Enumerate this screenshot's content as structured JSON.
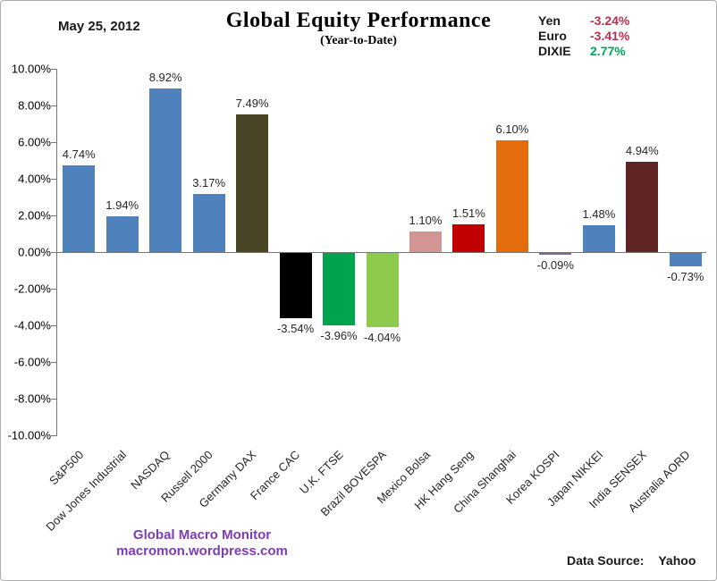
{
  "header": {
    "date": "May 25, 2012",
    "title": "Global Equity Performance",
    "subtitle": "(Year-to-Date)"
  },
  "currency_panel": {
    "negative_color": "#c12d4d",
    "positive_color": "#00a35f",
    "rows": [
      {
        "label": "Yen",
        "value": "-3.24%",
        "direction": "negative"
      },
      {
        "label": "Euro",
        "value": "-3.41%",
        "direction": "negative"
      },
      {
        "label": "DIXIE",
        "value": "2.77%",
        "direction": "positive"
      }
    ]
  },
  "chart_data": {
    "type": "bar",
    "title": "Global Equity Performance",
    "subtitle": "(Year-to-Date)",
    "categories": [
      "S&P500",
      "Dow Jones Industrial",
      "NASDAQ",
      "Russell 2000",
      "Germany DAX",
      "France CAC",
      "U.K. FTSE",
      "Brazil BOVESPA",
      "Mexico Bolsa",
      "HK Hang Seng",
      "China Shanghai",
      "Korea KOSPI",
      "Japan NIKKEI",
      "India SENSEX",
      "Australia AORD"
    ],
    "values": [
      4.74,
      1.94,
      8.92,
      3.17,
      7.49,
      -3.54,
      -3.96,
      -4.04,
      1.1,
      1.51,
      6.1,
      -0.09,
      1.48,
      4.94,
      -0.73
    ],
    "value_labels": [
      "4.74%",
      "1.94%",
      "8.92%",
      "3.17%",
      "7.49%",
      "-3.54%",
      "-3.96%",
      "-4.04%",
      "1.10%",
      "1.51%",
      "6.10%",
      "-0.09%",
      "1.48%",
      "4.94%",
      "-0.73%"
    ],
    "bar_colors": [
      "#4f81bd",
      "#4f81bd",
      "#4f81bd",
      "#4f81bd",
      "#4a4527",
      "#000000",
      "#00a44f",
      "#8ecb4d",
      "#d29593",
      "#c00000",
      "#e36c0d",
      "#7d6a93",
      "#4f81bd",
      "#5f2423",
      "#4f81bd"
    ],
    "ylim": [
      -10,
      10
    ],
    "ytick_values": [
      10,
      8,
      6,
      4,
      2,
      0,
      -2,
      -4,
      -6,
      -8,
      -10
    ],
    "ytick_labels": [
      "10.00%",
      "8.00%",
      "6.00%",
      "4.00%",
      "2.00%",
      "0.00%",
      "-2.00%",
      "-4.00%",
      "-6.00%",
      "-8.00%",
      "-10.00%"
    ],
    "grid": false,
    "legend": "none",
    "zero_axis": true
  },
  "footer": {
    "brand_name": "Global Macro Monitor",
    "brand_url": "macromon.wordpress.com",
    "brand_color": "#7d3cb5",
    "data_source_label": "Data Source:",
    "data_source_value": "Yahoo"
  }
}
